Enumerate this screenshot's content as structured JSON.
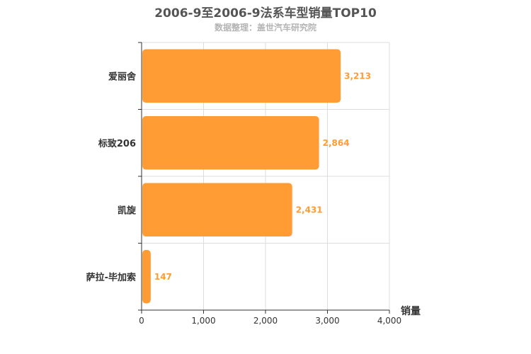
{
  "chart_data": {
    "type": "bar",
    "orientation": "horizontal",
    "title": "2006-9至2006-9法系车型销量TOP10",
    "subtitle": "数据整理：盖世汽车研究院",
    "xlabel": "销量",
    "ylabel": "",
    "categories": [
      "爱丽舍",
      "标致206",
      "凯旋",
      "萨拉-毕加索"
    ],
    "values": [
      3213,
      2864,
      2431,
      147
    ],
    "value_labels": [
      "3,213",
      "2,864",
      "2,431",
      "147"
    ],
    "xlim": [
      0,
      4000
    ],
    "x_ticks": [
      0,
      1000,
      2000,
      3000,
      4000
    ],
    "x_tick_labels": [
      "0",
      "1,000",
      "2,000",
      "3,000",
      "4,000"
    ],
    "grid": true,
    "bar_color": "#ff9c33",
    "label_color": "#ff9c33"
  }
}
